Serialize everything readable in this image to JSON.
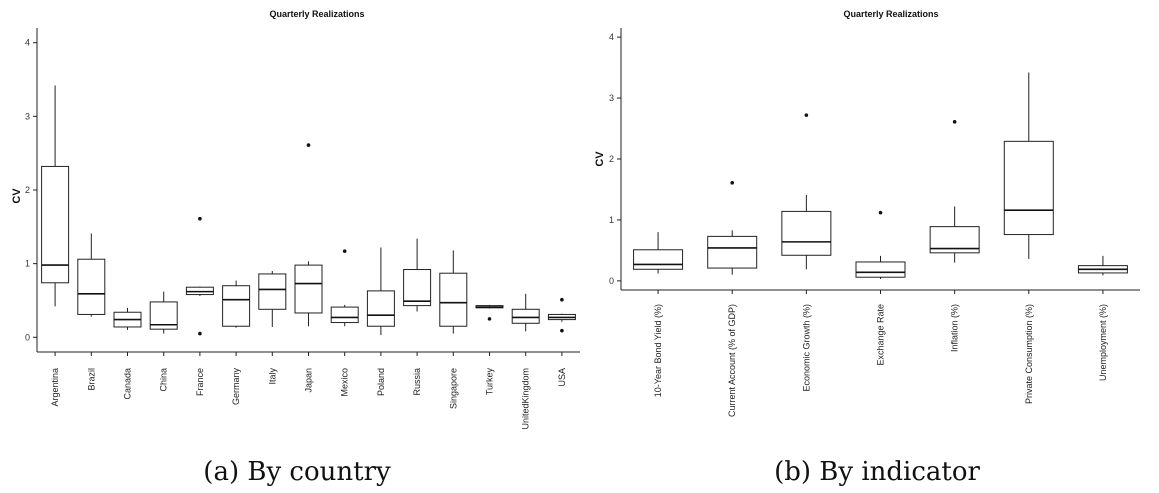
{
  "chart_data": [
    {
      "type": "box",
      "title": "Quarterly Realizations",
      "ylabel": "CV",
      "xlabel": "",
      "ylim": [
        -0.2,
        4.2
      ],
      "yticks": [
        0,
        1,
        2,
        3,
        4
      ],
      "grid": false,
      "caption": "(a) By country",
      "categories": [
        "Argentina",
        "Brazil",
        "Canada",
        "China",
        "France",
        "Germany",
        "Italy",
        "Japan",
        "Mexico",
        "Poland",
        "Russia",
        "Singapore",
        "Turkey",
        "UnitedKingdom",
        "USA"
      ],
      "boxes": [
        {
          "min": 0.42,
          "q1": 0.74,
          "median": 0.98,
          "q3": 2.32,
          "max": 3.42,
          "outliers": []
        },
        {
          "min": 0.28,
          "q1": 0.31,
          "median": 0.59,
          "q3": 1.06,
          "max": 1.41,
          "outliers": []
        },
        {
          "min": 0.1,
          "q1": 0.14,
          "median": 0.24,
          "q3": 0.34,
          "max": 0.4,
          "outliers": []
        },
        {
          "min": 0.05,
          "q1": 0.11,
          "median": 0.17,
          "q3": 0.48,
          "max": 0.62,
          "outliers": []
        },
        {
          "min": 0.56,
          "q1": 0.58,
          "median": 0.62,
          "q3": 0.68,
          "max": 0.69,
          "outliers": [
            1.61,
            0.05
          ]
        },
        {
          "min": 0.13,
          "q1": 0.15,
          "median": 0.51,
          "q3": 0.7,
          "max": 0.77,
          "outliers": []
        },
        {
          "min": 0.14,
          "q1": 0.38,
          "median": 0.65,
          "q3": 0.86,
          "max": 0.9,
          "outliers": []
        },
        {
          "min": 0.15,
          "q1": 0.33,
          "median": 0.73,
          "q3": 0.98,
          "max": 1.03,
          "outliers": [
            2.61
          ]
        },
        {
          "min": 0.15,
          "q1": 0.2,
          "median": 0.27,
          "q3": 0.41,
          "max": 0.44,
          "outliers": [
            1.17
          ]
        },
        {
          "min": 0.03,
          "q1": 0.15,
          "median": 0.3,
          "q3": 0.63,
          "max": 1.22,
          "outliers": []
        },
        {
          "min": 0.35,
          "q1": 0.43,
          "median": 0.49,
          "q3": 0.92,
          "max": 1.34,
          "outliers": []
        },
        {
          "min": 0.05,
          "q1": 0.15,
          "median": 0.47,
          "q3": 0.87,
          "max": 1.18,
          "outliers": []
        },
        {
          "min": 0.39,
          "q1": 0.4,
          "median": 0.41,
          "q3": 0.43,
          "max": 0.44,
          "outliers": [
            0.25
          ]
        },
        {
          "min": 0.08,
          "q1": 0.19,
          "median": 0.27,
          "q3": 0.38,
          "max": 0.59,
          "outliers": []
        },
        {
          "min": 0.21,
          "q1": 0.24,
          "median": 0.27,
          "q3": 0.31,
          "max": 0.32,
          "outliers": [
            0.51,
            0.09
          ]
        }
      ]
    },
    {
      "type": "box",
      "title": "Quarterly Realizations",
      "ylabel": "CV",
      "xlabel": "",
      "ylim": [
        -0.15,
        4.15
      ],
      "yticks": [
        0,
        1,
        2,
        3,
        4
      ],
      "grid": false,
      "caption": "(b) By indicator",
      "categories": [
        "10-Year Bond Yield (%)",
        "Current Account (% of GDP)",
        "Economic Growth (%)",
        "Exchange Rate",
        "Inflation (%)",
        "Private Consumption (%)",
        "Unemployment (%)"
      ],
      "boxes": [
        {
          "min": 0.12,
          "q1": 0.19,
          "median": 0.27,
          "q3": 0.51,
          "max": 0.8,
          "outliers": []
        },
        {
          "min": 0.1,
          "q1": 0.21,
          "median": 0.54,
          "q3": 0.73,
          "max": 0.83,
          "outliers": [
            1.61
          ]
        },
        {
          "min": 0.19,
          "q1": 0.42,
          "median": 0.64,
          "q3": 1.14,
          "max": 1.41,
          "outliers": [
            2.72
          ]
        },
        {
          "min": 0.03,
          "q1": 0.06,
          "median": 0.14,
          "q3": 0.31,
          "max": 0.41,
          "outliers": [
            1.12
          ]
        },
        {
          "min": 0.3,
          "q1": 0.46,
          "median": 0.53,
          "q3": 0.89,
          "max": 1.22,
          "outliers": [
            2.61
          ]
        },
        {
          "min": 0.36,
          "q1": 0.76,
          "median": 1.16,
          "q3": 2.29,
          "max": 3.42,
          "outliers": []
        },
        {
          "min": 0.09,
          "q1": 0.13,
          "median": 0.19,
          "q3": 0.25,
          "max": 0.41,
          "outliers": []
        }
      ]
    }
  ]
}
